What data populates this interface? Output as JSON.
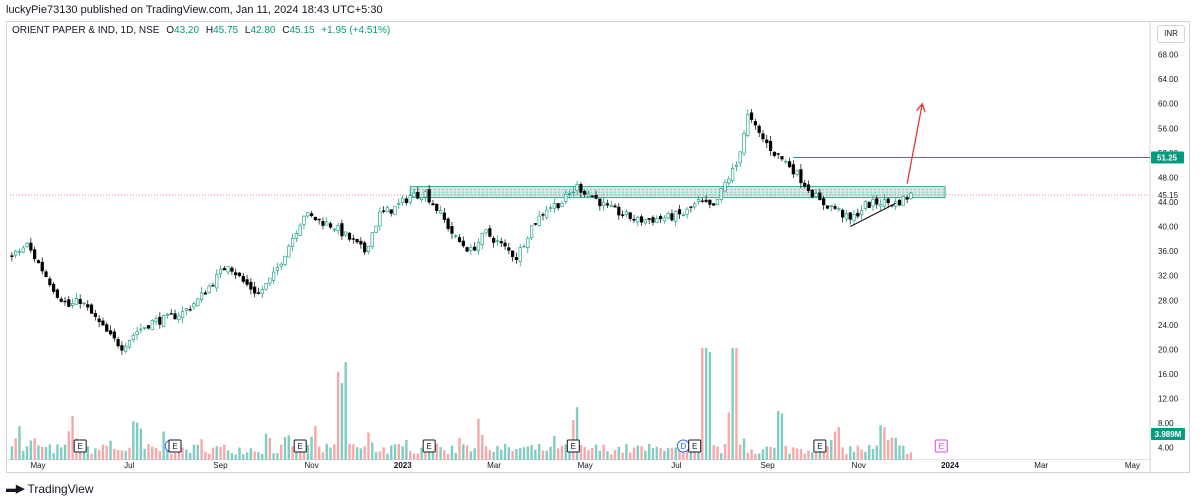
{
  "header": {
    "publisher_line": "luckyPie73130 published on TradingView.com, Jan 11, 2024 18:43 UTC+5:30"
  },
  "legend": {
    "symbol": "ORIENT PAPER & IND, 1D, NSE",
    "open_label": "O",
    "open": "43.20",
    "high_label": "H",
    "high": "45.75",
    "low_label": "L",
    "low": "42.80",
    "close_label": "C",
    "close": "45.15",
    "change": "+1.95 (+4.51%)"
  },
  "currency_button": "INR",
  "footer": {
    "logo_icon": "tradingview-logo-icon",
    "brand": "TradingView"
  },
  "colors": {
    "up": "#089981",
    "down": "#000000",
    "up_volume": "#7fccc0",
    "down_volume": "#f7a8a8",
    "zone": "#089981",
    "arrow": "#e53935",
    "trendline": "#000000"
  },
  "chart_data": {
    "type": "candlestick",
    "symbol": "ORIENT PAPER & IND",
    "interval": "1D",
    "exchange": "NSE",
    "price_axis": {
      "ticks": [
        "68.00",
        "64.00",
        "60.00",
        "56.00",
        "52.00",
        "48.00",
        "44.00",
        "40.00",
        "36.00",
        "32.00",
        "28.00",
        "24.00",
        "20.00",
        "16.00",
        "12.00",
        "8.00",
        "4.00"
      ],
      "range": [
        2,
        72
      ]
    },
    "time_axis": {
      "labels": [
        "May",
        "Jul",
        "Sep",
        "Nov",
        "2023",
        "Mar",
        "May",
        "Jul",
        "Sep",
        "Nov",
        "2024",
        "Mar",
        "May"
      ],
      "bold": [
        "2023",
        "2024"
      ]
    },
    "price_path": [
      [
        0,
        35
      ],
      [
        4,
        37
      ],
      [
        8,
        33
      ],
      [
        12,
        29
      ],
      [
        15,
        27
      ],
      [
        18,
        28
      ],
      [
        22,
        25
      ],
      [
        26,
        22
      ],
      [
        29,
        20.5
      ],
      [
        33,
        23
      ],
      [
        37,
        24.5
      ],
      [
        41,
        25
      ],
      [
        45,
        26
      ],
      [
        49,
        28
      ],
      [
        53,
        31
      ],
      [
        57,
        34
      ],
      [
        61,
        31
      ],
      [
        65,
        29
      ],
      [
        69,
        32
      ],
      [
        73,
        37
      ],
      [
        77,
        42
      ],
      [
        81,
        41
      ],
      [
        85,
        40
      ],
      [
        89,
        38
      ],
      [
        93,
        36
      ],
      [
        97,
        42
      ],
      [
        101,
        43
      ],
      [
        105,
        45
      ],
      [
        109,
        45.5
      ],
      [
        113,
        42
      ],
      [
        117,
        38
      ],
      [
        121,
        36
      ],
      [
        125,
        39
      ],
      [
        129,
        37
      ],
      [
        133,
        35
      ],
      [
        137,
        40
      ],
      [
        141,
        43
      ],
      [
        145,
        44
      ],
      [
        149,
        46.5
      ],
      [
        153,
        45
      ],
      [
        157,
        43
      ],
      [
        161,
        42
      ],
      [
        165,
        41
      ],
      [
        169,
        41.2
      ],
      [
        173,
        41.5
      ],
      [
        177,
        42
      ],
      [
        181,
        44
      ],
      [
        185,
        43
      ],
      [
        188,
        47
      ],
      [
        191,
        50
      ],
      [
        194,
        58
      ],
      [
        197,
        55
      ],
      [
        201,
        52
      ],
      [
        205,
        50
      ],
      [
        209,
        47
      ],
      [
        213,
        44
      ],
      [
        217,
        43
      ],
      [
        221,
        41
      ],
      [
        225,
        43.5
      ],
      [
        229,
        44
      ],
      [
        233,
        43.8
      ],
      [
        237,
        45.15
      ]
    ],
    "volume_profile": [
      5,
      2,
      3,
      2,
      2,
      2,
      6,
      2,
      2,
      2,
      3,
      2,
      2,
      5,
      2,
      2,
      4,
      2,
      2,
      2,
      3,
      2,
      2,
      2,
      2,
      2,
      2,
      4,
      2,
      3,
      2,
      2,
      5,
      2,
      2,
      14,
      3,
      2,
      4,
      2,
      2,
      2,
      3,
      2,
      2,
      2,
      2,
      2,
      4,
      2,
      5,
      2,
      2,
      2,
      2,
      2,
      2,
      2,
      3,
      2,
      7,
      2,
      2,
      2,
      2,
      2,
      2,
      2,
      2,
      2,
      3,
      2,
      2,
      2,
      16,
      2,
      2,
      15,
      4,
      2,
      2,
      2,
      7,
      2,
      2,
      2,
      3,
      2,
      4,
      2,
      2,
      2,
      2,
      5,
      3,
      2,
      2
    ],
    "price_labels": [
      {
        "text": "51.25",
        "value": 51.25,
        "kind": "horizontal-line"
      },
      {
        "text": "45.15",
        "value": 45.15,
        "kind": "last-price"
      }
    ],
    "volume_label": {
      "text": "3.989M"
    },
    "event_markers": [
      {
        "text": "E",
        "x": 18
      },
      {
        "text": "D",
        "x": 42
      },
      {
        "text": "E",
        "x": 43
      },
      {
        "text": "E",
        "x": 76
      },
      {
        "text": "E",
        "x": 110
      },
      {
        "text": "E",
        "x": 148
      },
      {
        "text": "D",
        "x": 177
      },
      {
        "text": "E",
        "x": 180
      },
      {
        "text": "E",
        "x": 213
      },
      {
        "text": "E",
        "x": 245,
        "upcoming": true
      }
    ],
    "drawings": {
      "resistance_zone": {
        "x_start": 105,
        "x_end": 246,
        "low": 44.7,
        "high": 46.5
      },
      "horizontal_line": {
        "x_start": 206,
        "value": 51.25
      },
      "trendline": {
        "x_start": 221,
        "y_start": 40,
        "x_end": 233,
        "y_end": 43.8
      },
      "arrow": {
        "x_start": 236,
        "y_start": 47,
        "x_end": 240,
        "y_end": 60
      }
    }
  }
}
